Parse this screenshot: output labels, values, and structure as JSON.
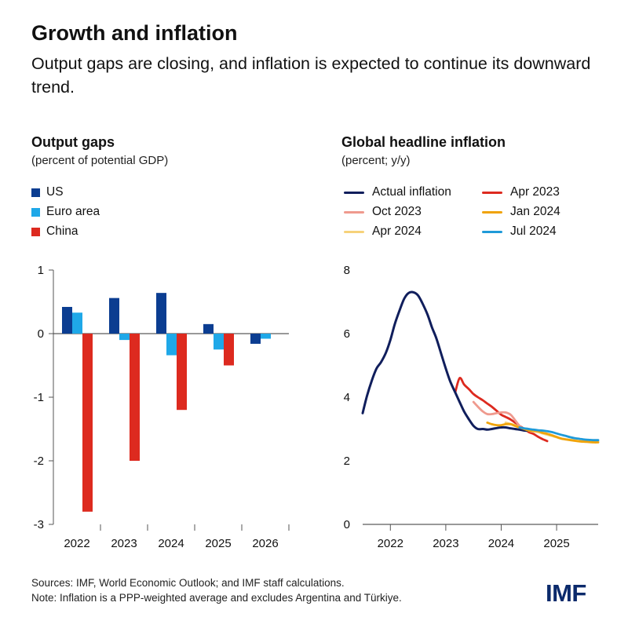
{
  "header": {
    "title": "Growth and inflation",
    "subtitle": "Output gaps are closing, and inflation is expected to continue its downward trend."
  },
  "panels": {
    "left": {
      "title": "Output gaps",
      "subtitle": "(percent of potential GDP)"
    },
    "right": {
      "title": "Global headline inflation",
      "subtitle": "(percent; y/y)"
    }
  },
  "footer": {
    "sources": "Sources: IMF, World Economic Outlook; and IMF staff calculations.",
    "note": "Note: Inflation is a PPP-weighted average and excludes Argentina and Türkiye.",
    "logo": "IMF"
  },
  "colors": {
    "us": "#0b3d91",
    "euro": "#1fa8e8",
    "china": "#dd2a1f",
    "actual": "#101e5c",
    "apr2023": "#dd2a1f",
    "oct2023": "#ef9a8e",
    "jan2024": "#f0a30a",
    "apr2024": "#f6d27a",
    "jul2024": "#1f9ad8",
    "axis": "#555555",
    "grid": "#999999"
  },
  "chart_data": [
    {
      "type": "bar",
      "title": "Output gaps",
      "subtitle": "(percent of potential GDP)",
      "categories": [
        "2022",
        "2023",
        "2024",
        "2025",
        "2026"
      ],
      "series": [
        {
          "name": "US",
          "values": [
            0.42,
            0.56,
            0.64,
            0.15,
            -0.16
          ]
        },
        {
          "name": "Euro area",
          "values": [
            0.33,
            -0.1,
            -0.34,
            -0.25,
            -0.08
          ]
        },
        {
          "name": "China",
          "values": [
            -2.8,
            -2.0,
            -1.2,
            -0.5,
            null
          ]
        }
      ],
      "ylim": [
        -3,
        1
      ],
      "yticks": [
        1,
        0,
        -1,
        -2,
        -3
      ],
      "ytick_labels": [
        "1",
        "0",
        "-1",
        "-2",
        "-3"
      ],
      "legend": "top-left"
    },
    {
      "type": "line",
      "title": "Global headline inflation",
      "subtitle": "(percent; y/y)",
      "xlim": [
        2021.5,
        2025.75
      ],
      "xticks": [
        2022,
        2023,
        2024,
        2025
      ],
      "xtick_labels": [
        "2022",
        "2023",
        "2024",
        "2025"
      ],
      "ylim": [
        0,
        8
      ],
      "yticks": [
        0,
        2,
        4,
        6,
        8
      ],
      "ytick_labels": [
        "0",
        "2",
        "4",
        "6",
        "8"
      ],
      "legend": "top",
      "series": [
        {
          "name": "Actual inflation",
          "x": [
            2021.5,
            2021.58,
            2021.67,
            2021.75,
            2021.83,
            2021.92,
            2022.0,
            2022.08,
            2022.17,
            2022.25,
            2022.33,
            2022.42,
            2022.5,
            2022.58,
            2022.67,
            2022.75,
            2022.83,
            2022.92,
            2023.0,
            2023.08,
            2023.17,
            2023.25,
            2023.33,
            2023.42,
            2023.5,
            2023.58,
            2023.67,
            2023.75,
            2023.83,
            2023.92,
            2024.0,
            2024.08,
            2024.17,
            2024.25,
            2024.33,
            2024.42,
            2024.5
          ],
          "y": [
            3.5,
            4.05,
            4.55,
            4.9,
            5.1,
            5.4,
            5.8,
            6.3,
            6.75,
            7.1,
            7.28,
            7.3,
            7.2,
            6.95,
            6.6,
            6.2,
            5.85,
            5.35,
            4.9,
            4.5,
            4.15,
            3.85,
            3.55,
            3.3,
            3.1,
            3.0,
            3.0,
            2.98,
            3.0,
            3.03,
            3.05,
            3.05,
            3.02,
            3.0,
            2.98,
            2.95,
            2.95
          ]
        },
        {
          "name": "Apr 2023",
          "x": [
            2023.17,
            2023.25,
            2023.33,
            2023.42,
            2023.5,
            2023.58,
            2023.67,
            2023.75,
            2023.83,
            2023.92,
            2024.0,
            2024.08,
            2024.17,
            2024.25,
            2024.33,
            2024.42,
            2024.5,
            2024.58,
            2024.67,
            2024.75,
            2024.83
          ],
          "y": [
            4.15,
            4.6,
            4.4,
            4.25,
            4.1,
            4.0,
            3.9,
            3.8,
            3.7,
            3.57,
            3.45,
            3.38,
            3.3,
            3.2,
            3.1,
            3.0,
            2.9,
            2.85,
            2.75,
            2.68,
            2.62
          ]
        },
        {
          "name": "Oct 2023",
          "x": [
            2023.5,
            2023.58,
            2023.67,
            2023.75,
            2023.83,
            2023.92,
            2024.0,
            2024.08,
            2024.17,
            2024.25,
            2024.33,
            2024.42,
            2024.5
          ],
          "y": [
            3.85,
            3.7,
            3.55,
            3.47,
            3.47,
            3.5,
            3.52,
            3.52,
            3.45,
            3.28,
            3.1,
            2.98,
            2.95
          ]
        },
        {
          "name": "Jan 2024",
          "x": [
            2023.75,
            2023.83,
            2023.92,
            2024.0,
            2024.08,
            2024.17,
            2024.25,
            2024.33,
            2024.42,
            2024.5,
            2024.58,
            2024.67,
            2024.75,
            2024.83,
            2024.92,
            2025.0,
            2025.08,
            2025.17,
            2025.25,
            2025.33,
            2025.42,
            2025.5,
            2025.58,
            2025.67,
            2025.75
          ],
          "y": [
            3.2,
            3.15,
            3.12,
            3.12,
            3.15,
            3.15,
            3.1,
            3.05,
            3.0,
            2.95,
            2.95,
            2.93,
            2.88,
            2.85,
            2.8,
            2.75,
            2.7,
            2.67,
            2.65,
            2.63,
            2.61,
            2.6,
            2.59,
            2.58,
            2.58
          ]
        },
        {
          "name": "Apr 2024",
          "x": [
            2024.08,
            2024.17,
            2024.25,
            2024.33,
            2024.42,
            2024.5,
            2024.58,
            2024.67,
            2024.75,
            2024.83,
            2024.92,
            2025.0,
            2025.08,
            2025.17,
            2025.25,
            2025.33,
            2025.42,
            2025.5,
            2025.58,
            2025.67,
            2025.75
          ],
          "y": [
            3.2,
            3.16,
            3.12,
            3.05,
            3.0,
            2.95,
            2.92,
            2.9,
            2.86,
            2.82,
            2.78,
            2.74,
            2.7,
            2.68,
            2.66,
            2.64,
            2.62,
            2.61,
            2.6,
            2.6,
            2.6
          ]
        },
        {
          "name": "Jul 2024",
          "x": [
            2024.33,
            2024.42,
            2024.5,
            2024.58,
            2024.67,
            2024.75,
            2024.83,
            2024.92,
            2025.0,
            2025.08,
            2025.17,
            2025.25,
            2025.33,
            2025.42,
            2025.5,
            2025.58,
            2025.67,
            2025.75
          ],
          "y": [
            3.05,
            3.02,
            3.0,
            2.98,
            2.96,
            2.95,
            2.93,
            2.9,
            2.86,
            2.82,
            2.78,
            2.74,
            2.71,
            2.69,
            2.67,
            2.66,
            2.65,
            2.65
          ]
        }
      ]
    }
  ]
}
